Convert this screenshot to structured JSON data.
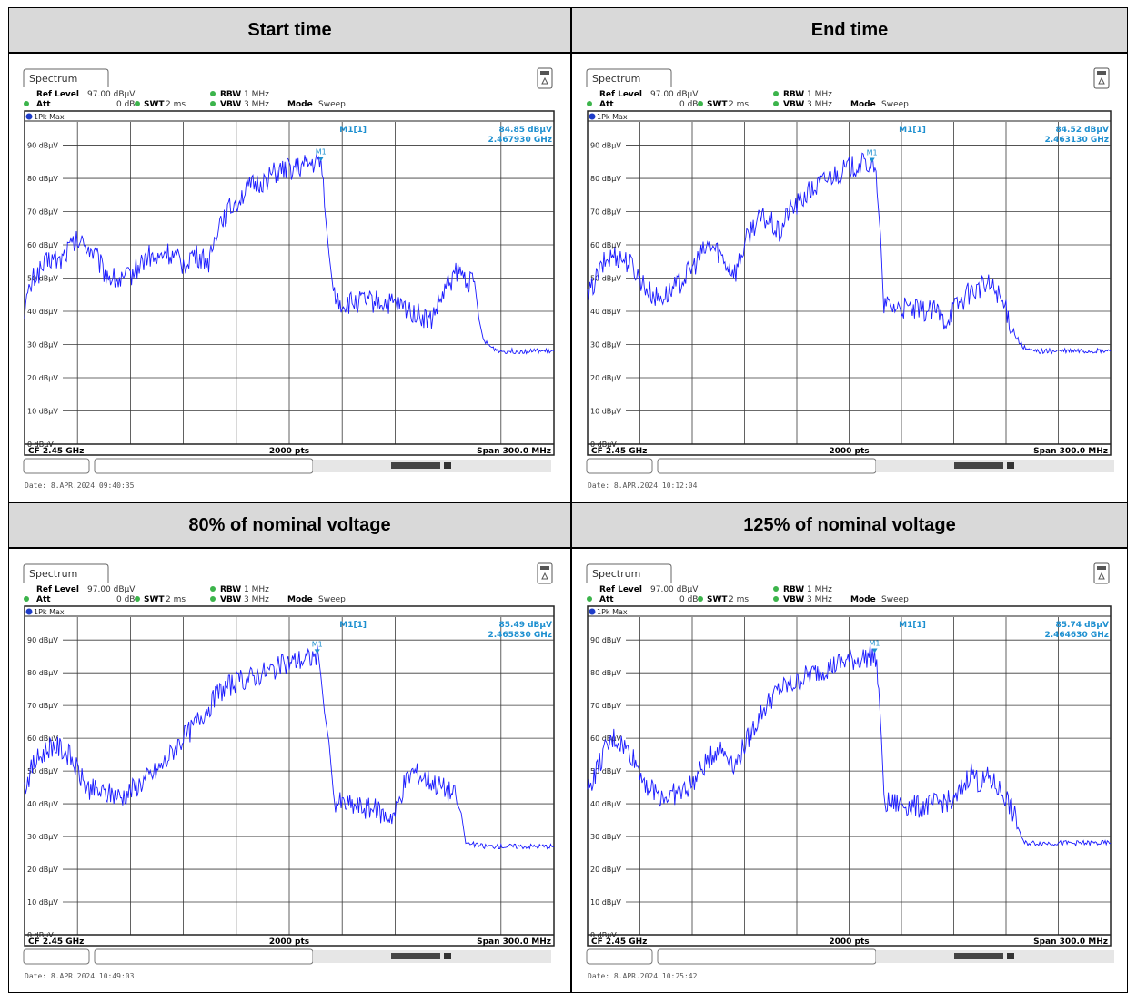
{
  "panels": [
    {
      "header": "Start time",
      "tab_label": "Spectrum",
      "ref_level_label": "Ref Level",
      "ref_level_value": "97.00 dBµV",
      "att_label": "Att",
      "att_value": "0 dB",
      "swt_label": "SWT",
      "swt_value": "2 ms",
      "rbw_label": "RBW",
      "rbw_value": "1 MHz",
      "vbw_label": "VBW",
      "vbw_value": "3 MHz",
      "mode_label": "Mode",
      "mode_value": "Sweep",
      "trace_label": "1Pk Max",
      "marker_id": "M1[1]",
      "marker_short": "M1",
      "marker_level": "84.85 dBµV",
      "marker_freq": "2.467930 GHz",
      "cf_label": "CF 2.45 GHz",
      "pts_label": "2000 pts",
      "span_label": "Span 300.0 MHz",
      "date_text": "Date: 8.APR.2024  09:40:35"
    },
    {
      "header": "End time",
      "tab_label": "Spectrum",
      "ref_level_label": "Ref Level",
      "ref_level_value": "97.00 dBµV",
      "att_label": "Att",
      "att_value": "0 dB",
      "swt_label": "SWT",
      "swt_value": "2 ms",
      "rbw_label": "RBW",
      "rbw_value": "1 MHz",
      "vbw_label": "VBW",
      "vbw_value": "3 MHz",
      "mode_label": "Mode",
      "mode_value": "Sweep",
      "trace_label": "1Pk Max",
      "marker_id": "M1[1]",
      "marker_short": "M1",
      "marker_level": "84.52 dBµV",
      "marker_freq": "2.463130 GHz",
      "cf_label": "CF 2.45 GHz",
      "pts_label": "2000 pts",
      "span_label": "Span 300.0 MHz",
      "date_text": "Date: 8.APR.2024  10:12:04"
    },
    {
      "header": "80% of nominal voltage",
      "tab_label": "Spectrum",
      "ref_level_label": "Ref Level",
      "ref_level_value": "97.00 dBµV",
      "att_label": "Att",
      "att_value": "0 dB",
      "swt_label": "SWT",
      "swt_value": "2 ms",
      "rbw_label": "RBW",
      "rbw_value": "1 MHz",
      "vbw_label": "VBW",
      "vbw_value": "3 MHz",
      "mode_label": "Mode",
      "mode_value": "Sweep",
      "trace_label": "1Pk Max",
      "marker_id": "M1[1]",
      "marker_short": "M1",
      "marker_level": "85.49 dBµV",
      "marker_freq": "2.465830 GHz",
      "cf_label": "CF 2.45 GHz",
      "pts_label": "2000 pts",
      "span_label": "Span 300.0 MHz",
      "date_text": "Date: 8.APR.2024  10:49:03"
    },
    {
      "header": "125% of nominal voltage",
      "tab_label": "Spectrum",
      "ref_level_label": "Ref Level",
      "ref_level_value": "97.00 dBµV",
      "att_label": "Att",
      "att_value": "0 dB",
      "swt_label": "SWT",
      "swt_value": "2 ms",
      "rbw_label": "RBW",
      "rbw_value": "1 MHz",
      "vbw_label": "VBW",
      "vbw_value": "3 MHz",
      "mode_label": "Mode",
      "mode_value": "Sweep",
      "trace_label": "1Pk Max",
      "marker_id": "M1[1]",
      "marker_short": "M1",
      "marker_level": "85.74 dBµV",
      "marker_freq": "2.464630 GHz",
      "cf_label": "CF 2.45 GHz",
      "pts_label": "2000 pts",
      "span_label": "Span 300.0 MHz",
      "date_text": "Date: 8.APR.2024  10:25:42"
    }
  ],
  "colors": {
    "trace": "#1a1aff",
    "marker": "#1e90d0",
    "grid": "#3a3a3a",
    "header_bg": "#d9d9d9",
    "status_green": "#3cb44b"
  },
  "chart_data": [
    {
      "type": "line",
      "xlabel": "",
      "ylabel": "",
      "x_unit": "GHz",
      "y_unit": "dBµV",
      "xlim": [
        2.3,
        2.6
      ],
      "ylim": [
        0,
        97
      ],
      "yticks": [
        0,
        10,
        20,
        30,
        40,
        50,
        60,
        70,
        80,
        90
      ],
      "ytick_labels": [
        "0 dBµV",
        "10 dBµV",
        "20 dBµV",
        "30 dBµV",
        "40 dBµV",
        "50 dBµV",
        "60 dBµV",
        "70 dBµV",
        "80 dBµV",
        "90 dBµV"
      ],
      "grid": true,
      "series": [
        {
          "name": "1Pk Max",
          "x": [
            2.3,
            2.305,
            2.31,
            2.315,
            2.32,
            2.325,
            2.33,
            2.335,
            2.34,
            2.345,
            2.35,
            2.355,
            2.36,
            2.365,
            2.37,
            2.375,
            2.38,
            2.385,
            2.39,
            2.395,
            2.4,
            2.405,
            2.41,
            2.415,
            2.42,
            2.425,
            2.43,
            2.435,
            2.44,
            2.445,
            2.45,
            2.455,
            2.46,
            2.4679,
            2.47,
            2.475,
            2.48,
            2.49,
            2.5,
            2.51,
            2.52,
            2.53,
            2.54,
            2.545,
            2.55,
            2.555,
            2.56,
            2.565,
            2.57,
            2.575,
            2.58,
            2.585,
            2.59,
            2.595,
            2.6
          ],
          "y": [
            41,
            50,
            53,
            56,
            55,
            59,
            61,
            60,
            57,
            52,
            50,
            49,
            51,
            54,
            57,
            55,
            58,
            56,
            54,
            57,
            56,
            55,
            67,
            70,
            73,
            76,
            78,
            79,
            81,
            82,
            83,
            83,
            84,
            84.85,
            75,
            45,
            42,
            43,
            43,
            42,
            40,
            37,
            48,
            52,
            50,
            48,
            31,
            29,
            28,
            28,
            28,
            28,
            28,
            28,
            28
          ]
        }
      ],
      "marker": {
        "x": 2.46793,
        "y": 84.85
      }
    },
    {
      "type": "line",
      "xlabel": "",
      "ylabel": "",
      "x_unit": "GHz",
      "y_unit": "dBµV",
      "xlim": [
        2.3,
        2.6
      ],
      "ylim": [
        0,
        97
      ],
      "yticks": [
        0,
        10,
        20,
        30,
        40,
        50,
        60,
        70,
        80,
        90
      ],
      "ytick_labels": [
        "0 dBµV",
        "10 dBµV",
        "20 dBµV",
        "30 dBµV",
        "40 dBµV",
        "50 dBµV",
        "60 dBµV",
        "70 dBµV",
        "80 dBµV",
        "90 dBµV"
      ],
      "grid": true,
      "series": [
        {
          "name": "1Pk Max",
          "x": [
            2.3,
            2.305,
            2.31,
            2.315,
            2.32,
            2.325,
            2.33,
            2.335,
            2.34,
            2.345,
            2.35,
            2.355,
            2.36,
            2.365,
            2.37,
            2.375,
            2.38,
            2.385,
            2.39,
            2.395,
            2.4,
            2.405,
            2.41,
            2.415,
            2.42,
            2.425,
            2.43,
            2.435,
            2.44,
            2.445,
            2.45,
            2.455,
            2.4631,
            2.466,
            2.47,
            2.48,
            2.49,
            2.5,
            2.505,
            2.51,
            2.52,
            2.53,
            2.535,
            2.54,
            2.545,
            2.55,
            2.555,
            2.56,
            2.57,
            2.58,
            2.59,
            2.6
          ],
          "y": [
            44,
            50,
            55,
            57,
            56,
            54,
            50,
            46,
            44,
            45,
            47,
            50,
            53,
            57,
            60,
            58,
            54,
            52,
            60,
            66,
            68,
            67,
            63,
            70,
            72,
            75,
            77,
            79,
            81,
            82,
            83,
            84,
            84.52,
            78,
            42,
            41,
            40,
            40,
            37,
            41,
            46,
            48,
            46,
            40,
            33,
            29,
            28,
            28,
            28,
            28,
            28,
            28
          ]
        }
      ],
      "marker": {
        "x": 2.46313,
        "y": 84.52
      }
    },
    {
      "type": "line",
      "xlabel": "",
      "ylabel": "",
      "x_unit": "GHz",
      "y_unit": "dBµV",
      "xlim": [
        2.3,
        2.6
      ],
      "ylim": [
        0,
        97
      ],
      "yticks": [
        0,
        10,
        20,
        30,
        40,
        50,
        60,
        70,
        80,
        90
      ],
      "ytick_labels": [
        "0 dBµV",
        "10 dBµV",
        "20 dBµV",
        "30 dBµV",
        "40 dBµV",
        "50 dBµV",
        "60 dBµV",
        "70 dBµV",
        "80 dBµV",
        "90 dBµV"
      ],
      "grid": true,
      "series": [
        {
          "name": "1Pk Max",
          "x": [
            2.3,
            2.305,
            2.31,
            2.315,
            2.32,
            2.325,
            2.33,
            2.335,
            2.34,
            2.345,
            2.35,
            2.355,
            2.36,
            2.365,
            2.37,
            2.375,
            2.38,
            2.385,
            2.39,
            2.395,
            2.4,
            2.405,
            2.41,
            2.415,
            2.42,
            2.425,
            2.43,
            2.435,
            2.44,
            2.445,
            2.45,
            2.455,
            2.46,
            2.4658,
            2.47,
            2.475,
            2.48,
            2.49,
            2.5,
            2.505,
            2.51,
            2.515,
            2.52,
            2.53,
            2.54,
            2.545,
            2.55,
            2.56,
            2.57,
            2.58,
            2.59,
            2.6
          ],
          "y": [
            45,
            52,
            55,
            58,
            57,
            55,
            50,
            45,
            44,
            43,
            43,
            42,
            44,
            46,
            48,
            50,
            53,
            57,
            60,
            63,
            67,
            70,
            74,
            76,
            77,
            78,
            79,
            80,
            81,
            82,
            83,
            84,
            84,
            85.49,
            70,
            41,
            40,
            39,
            38,
            36,
            37,
            46,
            50,
            47,
            44,
            42,
            28,
            27,
            27,
            27,
            27,
            27
          ]
        }
      ],
      "marker": {
        "x": 2.46583,
        "y": 85.49
      }
    },
    {
      "type": "line",
      "xlabel": "",
      "ylabel": "",
      "x_unit": "GHz",
      "y_unit": "dBµV",
      "xlim": [
        2.3,
        2.6
      ],
      "ylim": [
        0,
        97
      ],
      "yticks": [
        0,
        10,
        20,
        30,
        40,
        50,
        60,
        70,
        80,
        90
      ],
      "ytick_labels": [
        "0 dBµV",
        "10 dBµV",
        "20 dBµV",
        "30 dBµV",
        "40 dBµV",
        "50 dBµV",
        "60 dBµV",
        "70 dBµV",
        "80 dBµV",
        "90 dBµV"
      ],
      "grid": true,
      "series": [
        {
          "name": "1Pk Max",
          "x": [
            2.3,
            2.305,
            2.31,
            2.315,
            2.32,
            2.325,
            2.33,
            2.335,
            2.34,
            2.345,
            2.35,
            2.355,
            2.36,
            2.365,
            2.37,
            2.375,
            2.38,
            2.385,
            2.39,
            2.395,
            2.4,
            2.405,
            2.41,
            2.415,
            2.42,
            2.425,
            2.43,
            2.435,
            2.44,
            2.445,
            2.45,
            2.455,
            2.4646,
            2.467,
            2.47,
            2.48,
            2.49,
            2.5,
            2.505,
            2.51,
            2.515,
            2.52,
            2.525,
            2.53,
            2.535,
            2.54,
            2.545,
            2.55,
            2.56,
            2.57,
            2.58,
            2.59,
            2.6
          ],
          "y": [
            44,
            50,
            56,
            60,
            58,
            55,
            50,
            45,
            43,
            42,
            43,
            44,
            46,
            50,
            54,
            57,
            55,
            52,
            58,
            63,
            68,
            72,
            75,
            76,
            77,
            79,
            80,
            81,
            82,
            83,
            84,
            84,
            85.74,
            76,
            40,
            40,
            39,
            40,
            41,
            40,
            45,
            50,
            46,
            48,
            45,
            42,
            36,
            28,
            28,
            28,
            28,
            28,
            28
          ]
        }
      ],
      "marker": {
        "x": 2.46463,
        "y": 85.74
      }
    }
  ]
}
